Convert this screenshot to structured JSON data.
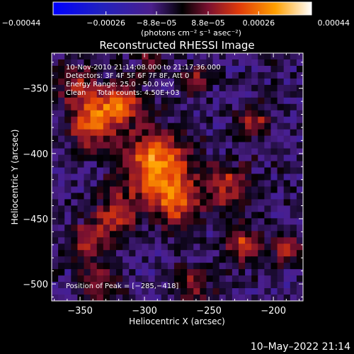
{
  "chart_data": {
    "type": "heatmap",
    "title": "Reconstructed RHESSI Image",
    "xlabel": "Heliocentric X (arcsec)",
    "ylabel": "Heliocentric Y (arcsec)",
    "xlim": [
      -372,
      -177
    ],
    "ylim": [
      -513,
      -323
    ],
    "x_ticks": [
      -350,
      -300,
      -250,
      -200
    ],
    "y_ticks": [
      -350,
      -400,
      -450,
      -500
    ],
    "x_tick_labels": [
      "−350",
      "−300",
      "−250",
      "−200"
    ],
    "y_tick_labels": [
      "−350",
      "−400",
      "−450",
      "−500"
    ],
    "colorbar": {
      "range": [
        -0.00044,
        0.00044
      ],
      "tick_values": [
        -0.00044,
        -0.00026,
        -8.8e-05,
        8.8e-05,
        0.00026,
        0.00044
      ],
      "tick_labels": [
        "−0.00044",
        "−0.00026",
        "−8.8e−05",
        "8.8e−05",
        "0.00026",
        "0.00044"
      ],
      "units_label": "(photons cm⁻² s⁻¹ asec⁻²)"
    },
    "annotations": [
      "10-Nov-2010 21:14:08.000 to 21:17:36.000",
      "Detectors: 3F 4F 5F 6F 7F 8F, Att 0",
      "Energy Range: 25.0 - 50.0 keV",
      "Clean     Total counts: 4.50E+03"
    ],
    "peak_label": "Position of Peak = [−285,−418]",
    "peak": [
      -285,
      -418
    ],
    "grid": {
      "nx": 39,
      "ny": 39
    },
    "sources": [
      {
        "x": -290,
        "y": -410,
        "sigma": 18,
        "amp": 0.00038
      },
      {
        "x": -340,
        "y": -375,
        "sigma": 14,
        "amp": 0.0003
      },
      {
        "x": -355,
        "y": -345,
        "sigma": 10,
        "amp": 0.0002
      },
      {
        "x": -318,
        "y": -362,
        "sigma": 12,
        "amp": 0.00026
      },
      {
        "x": -275,
        "y": -440,
        "sigma": 12,
        "amp": 0.00025
      },
      {
        "x": -322,
        "y": -448,
        "sigma": 12,
        "amp": 0.00024
      },
      {
        "x": -345,
        "y": -468,
        "sigma": 10,
        "amp": 0.0002
      },
      {
        "x": -235,
        "y": -425,
        "sigma": 12,
        "amp": 0.00022
      },
      {
        "x": -215,
        "y": -375,
        "sigma": 8,
        "amp": 0.00022
      },
      {
        "x": -222,
        "y": -470,
        "sigma": 10,
        "amp": 0.00024
      },
      {
        "x": -190,
        "y": -475,
        "sigma": 8,
        "amp": 0.0002
      },
      {
        "x": -262,
        "y": -500,
        "sigma": 10,
        "amp": 0.00018
      },
      {
        "x": -335,
        "y": -498,
        "sigma": 10,
        "amp": 0.00018
      },
      {
        "x": -260,
        "y": -345,
        "sigma": 8,
        "amp": 0.00016
      },
      {
        "x": -295,
        "y": -330,
        "sigma": 8,
        "amp": 0.00014
      }
    ]
  },
  "footer": {
    "timestamp": "10–May–2022 21:14"
  }
}
